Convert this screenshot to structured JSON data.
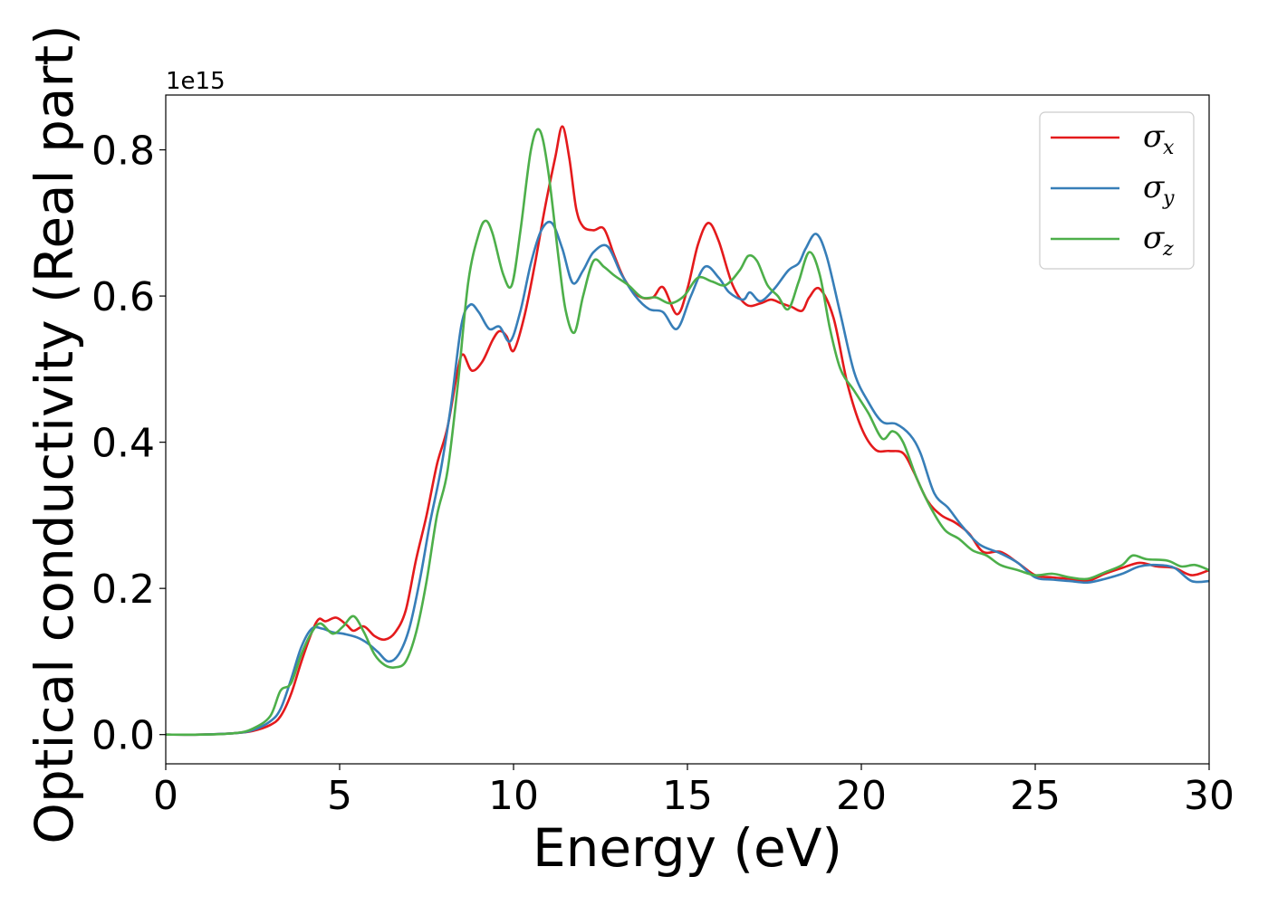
{
  "chart_data": {
    "type": "line",
    "title": "",
    "xlabel": "Energy (eV)",
    "ylabel": "Optical conductivity (Real part)",
    "y_offset_label": "1e15",
    "xlim": [
      0,
      30
    ],
    "ylim": [
      -0.04,
      0.875
    ],
    "xticks": [
      0,
      5,
      10,
      15,
      20,
      25,
      30
    ],
    "xtick_labels": [
      "0",
      "5",
      "10",
      "15",
      "20",
      "25",
      "30"
    ],
    "yticks": [
      0.0,
      0.2,
      0.4,
      0.6,
      0.8
    ],
    "ytick_labels": [
      "0.0",
      "0.2",
      "0.4",
      "0.6",
      "0.8"
    ],
    "grid": false,
    "legend_position": "top-right",
    "series": [
      {
        "name": "σx",
        "symbol": "σ",
        "subscript": "x",
        "color": "#e41a1c",
        "points": [
          [
            0,
            0
          ],
          [
            1,
            0
          ],
          [
            2,
            0.002
          ],
          [
            2.5,
            0.005
          ],
          [
            3,
            0.013
          ],
          [
            3.3,
            0.025
          ],
          [
            3.6,
            0.055
          ],
          [
            3.9,
            0.1
          ],
          [
            4.2,
            0.14
          ],
          [
            4.4,
            0.158
          ],
          [
            4.6,
            0.155
          ],
          [
            4.9,
            0.16
          ],
          [
            5.2,
            0.15
          ],
          [
            5.4,
            0.142
          ],
          [
            5.7,
            0.148
          ],
          [
            6,
            0.135
          ],
          [
            6.3,
            0.13
          ],
          [
            6.6,
            0.14
          ],
          [
            6.9,
            0.17
          ],
          [
            7.2,
            0.24
          ],
          [
            7.5,
            0.3
          ],
          [
            7.8,
            0.37
          ],
          [
            8.1,
            0.42
          ],
          [
            8.4,
            0.5
          ],
          [
            8.55,
            0.52
          ],
          [
            8.8,
            0.498
          ],
          [
            9.1,
            0.51
          ],
          [
            9.4,
            0.54
          ],
          [
            9.6,
            0.552
          ],
          [
            9.8,
            0.545
          ],
          [
            10,
            0.525
          ],
          [
            10.3,
            0.57
          ],
          [
            10.6,
            0.64
          ],
          [
            10.9,
            0.72
          ],
          [
            11.2,
            0.79
          ],
          [
            11.4,
            0.832
          ],
          [
            11.6,
            0.79
          ],
          [
            11.8,
            0.72
          ],
          [
            12,
            0.695
          ],
          [
            12.3,
            0.69
          ],
          [
            12.6,
            0.692
          ],
          [
            12.9,
            0.655
          ],
          [
            13.2,
            0.622
          ],
          [
            13.6,
            0.6
          ],
          [
            14,
            0.598
          ],
          [
            14.3,
            0.612
          ],
          [
            14.7,
            0.575
          ],
          [
            15,
            0.61
          ],
          [
            15.3,
            0.67
          ],
          [
            15.6,
            0.7
          ],
          [
            15.9,
            0.675
          ],
          [
            16.3,
            0.615
          ],
          [
            16.7,
            0.588
          ],
          [
            17.1,
            0.59
          ],
          [
            17.4,
            0.595
          ],
          [
            17.7,
            0.59
          ],
          [
            18,
            0.585
          ],
          [
            18.3,
            0.58
          ],
          [
            18.5,
            0.598
          ],
          [
            18.8,
            0.61
          ],
          [
            19.2,
            0.57
          ],
          [
            19.6,
            0.48
          ],
          [
            20,
            0.42
          ],
          [
            20.4,
            0.39
          ],
          [
            20.8,
            0.388
          ],
          [
            21.2,
            0.385
          ],
          [
            21.5,
            0.36
          ],
          [
            21.9,
            0.32
          ],
          [
            22.3,
            0.3
          ],
          [
            22.7,
            0.29
          ],
          [
            23.1,
            0.275
          ],
          [
            23.5,
            0.25
          ],
          [
            24,
            0.25
          ],
          [
            24.5,
            0.235
          ],
          [
            25,
            0.218
          ],
          [
            25.5,
            0.215
          ],
          [
            26,
            0.213
          ],
          [
            26.5,
            0.21
          ],
          [
            27,
            0.22
          ],
          [
            27.5,
            0.228
          ],
          [
            28,
            0.235
          ],
          [
            28.5,
            0.23
          ],
          [
            29,
            0.228
          ],
          [
            29.5,
            0.218
          ],
          [
            30,
            0.225
          ]
        ]
      },
      {
        "name": "σy",
        "symbol": "σ",
        "subscript": "y",
        "color": "#377eb8",
        "points": [
          [
            0,
            0
          ],
          [
            1,
            0
          ],
          [
            2,
            0.002
          ],
          [
            2.5,
            0.006
          ],
          [
            3,
            0.018
          ],
          [
            3.3,
            0.035
          ],
          [
            3.6,
            0.075
          ],
          [
            3.9,
            0.12
          ],
          [
            4.2,
            0.145
          ],
          [
            4.5,
            0.145
          ],
          [
            4.8,
            0.14
          ],
          [
            5.1,
            0.138
          ],
          [
            5.5,
            0.133
          ],
          [
            5.8,
            0.125
          ],
          [
            6.1,
            0.113
          ],
          [
            6.4,
            0.1
          ],
          [
            6.7,
            0.11
          ],
          [
            7,
            0.145
          ],
          [
            7.3,
            0.21
          ],
          [
            7.6,
            0.29
          ],
          [
            7.9,
            0.36
          ],
          [
            8.2,
            0.45
          ],
          [
            8.5,
            0.56
          ],
          [
            8.75,
            0.588
          ],
          [
            9,
            0.578
          ],
          [
            9.3,
            0.555
          ],
          [
            9.6,
            0.558
          ],
          [
            9.9,
            0.538
          ],
          [
            10.2,
            0.58
          ],
          [
            10.5,
            0.645
          ],
          [
            10.8,
            0.69
          ],
          [
            11.1,
            0.7
          ],
          [
            11.4,
            0.665
          ],
          [
            11.7,
            0.618
          ],
          [
            12,
            0.635
          ],
          [
            12.3,
            0.66
          ],
          [
            12.7,
            0.668
          ],
          [
            13.1,
            0.63
          ],
          [
            13.5,
            0.6
          ],
          [
            13.9,
            0.582
          ],
          [
            14.3,
            0.578
          ],
          [
            14.7,
            0.555
          ],
          [
            15.1,
            0.6
          ],
          [
            15.5,
            0.64
          ],
          [
            15.9,
            0.625
          ],
          [
            16.2,
            0.605
          ],
          [
            16.6,
            0.595
          ],
          [
            16.8,
            0.605
          ],
          [
            17.1,
            0.593
          ],
          [
            17.5,
            0.61
          ],
          [
            17.9,
            0.635
          ],
          [
            18.2,
            0.645
          ],
          [
            18.4,
            0.665
          ],
          [
            18.7,
            0.685
          ],
          [
            19,
            0.655
          ],
          [
            19.4,
            0.575
          ],
          [
            19.8,
            0.495
          ],
          [
            20.2,
            0.455
          ],
          [
            20.6,
            0.428
          ],
          [
            21,
            0.425
          ],
          [
            21.4,
            0.41
          ],
          [
            21.7,
            0.385
          ],
          [
            22.1,
            0.33
          ],
          [
            22.5,
            0.31
          ],
          [
            22.9,
            0.285
          ],
          [
            23.4,
            0.26
          ],
          [
            24,
            0.248
          ],
          [
            24.5,
            0.235
          ],
          [
            25,
            0.215
          ],
          [
            25.5,
            0.212
          ],
          [
            26,
            0.21
          ],
          [
            26.5,
            0.208
          ],
          [
            27,
            0.213
          ],
          [
            27.5,
            0.22
          ],
          [
            28,
            0.23
          ],
          [
            28.5,
            0.232
          ],
          [
            29,
            0.228
          ],
          [
            29.5,
            0.21
          ],
          [
            30,
            0.21
          ]
        ]
      },
      {
        "name": "σz",
        "symbol": "σ",
        "subscript": "z",
        "color": "#4daf4a",
        "points": [
          [
            0,
            0
          ],
          [
            1,
            0
          ],
          [
            2,
            0.002
          ],
          [
            2.5,
            0.008
          ],
          [
            3,
            0.025
          ],
          [
            3.3,
            0.06
          ],
          [
            3.6,
            0.07
          ],
          [
            3.9,
            0.11
          ],
          [
            4.2,
            0.14
          ],
          [
            4.45,
            0.152
          ],
          [
            4.8,
            0.138
          ],
          [
            5.1,
            0.148
          ],
          [
            5.4,
            0.162
          ],
          [
            5.7,
            0.14
          ],
          [
            6,
            0.11
          ],
          [
            6.3,
            0.095
          ],
          [
            6.6,
            0.092
          ],
          [
            6.9,
            0.1
          ],
          [
            7.2,
            0.14
          ],
          [
            7.5,
            0.21
          ],
          [
            7.8,
            0.3
          ],
          [
            8.1,
            0.36
          ],
          [
            8.4,
            0.48
          ],
          [
            8.7,
            0.62
          ],
          [
            9,
            0.685
          ],
          [
            9.2,
            0.703
          ],
          [
            9.4,
            0.685
          ],
          [
            9.7,
            0.63
          ],
          [
            9.95,
            0.615
          ],
          [
            10.2,
            0.69
          ],
          [
            10.5,
            0.8
          ],
          [
            10.75,
            0.827
          ],
          [
            11,
            0.77
          ],
          [
            11.3,
            0.65
          ],
          [
            11.5,
            0.58
          ],
          [
            11.75,
            0.55
          ],
          [
            12,
            0.6
          ],
          [
            12.3,
            0.648
          ],
          [
            12.6,
            0.64
          ],
          [
            12.9,
            0.628
          ],
          [
            13.3,
            0.615
          ],
          [
            13.7,
            0.598
          ],
          [
            14.1,
            0.598
          ],
          [
            14.5,
            0.59
          ],
          [
            14.9,
            0.6
          ],
          [
            15.3,
            0.625
          ],
          [
            15.7,
            0.62
          ],
          [
            16.1,
            0.615
          ],
          [
            16.5,
            0.635
          ],
          [
            16.75,
            0.655
          ],
          [
            17,
            0.648
          ],
          [
            17.3,
            0.615
          ],
          [
            17.6,
            0.6
          ],
          [
            17.9,
            0.582
          ],
          [
            18.2,
            0.62
          ],
          [
            18.5,
            0.66
          ],
          [
            18.8,
            0.63
          ],
          [
            19.1,
            0.555
          ],
          [
            19.4,
            0.5
          ],
          [
            19.8,
            0.47
          ],
          [
            20.2,
            0.44
          ],
          [
            20.6,
            0.405
          ],
          [
            20.9,
            0.415
          ],
          [
            21.2,
            0.4
          ],
          [
            21.6,
            0.35
          ],
          [
            22,
            0.31
          ],
          [
            22.4,
            0.28
          ],
          [
            22.8,
            0.268
          ],
          [
            23.2,
            0.252
          ],
          [
            23.6,
            0.245
          ],
          [
            24,
            0.232
          ],
          [
            24.5,
            0.225
          ],
          [
            25,
            0.218
          ],
          [
            25.5,
            0.22
          ],
          [
            26,
            0.215
          ],
          [
            26.5,
            0.213
          ],
          [
            27,
            0.222
          ],
          [
            27.5,
            0.232
          ],
          [
            27.8,
            0.245
          ],
          [
            28.2,
            0.24
          ],
          [
            28.8,
            0.238
          ],
          [
            29.2,
            0.23
          ],
          [
            29.6,
            0.232
          ],
          [
            30,
            0.225
          ]
        ]
      }
    ]
  }
}
